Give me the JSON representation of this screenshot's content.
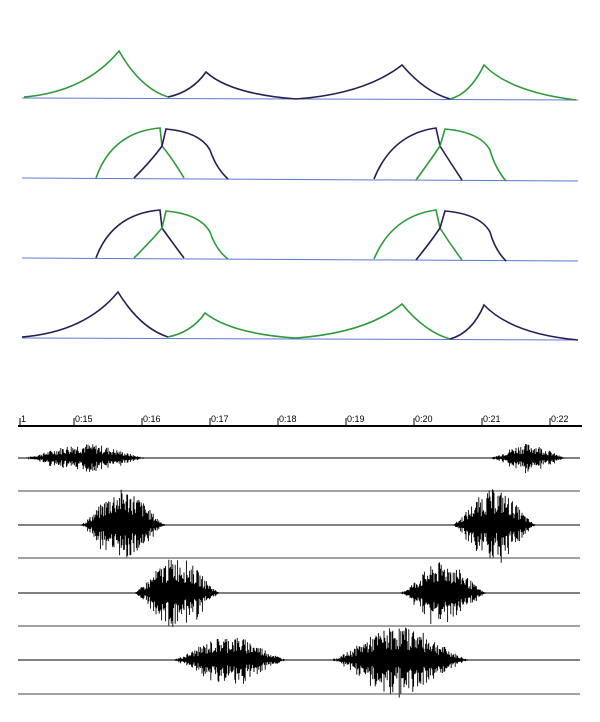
{
  "figure": {
    "timeline": {
      "ticks": [
        "1",
        "0:15",
        "0:16",
        "0:17",
        "0:18",
        "0:19",
        "0:20",
        "0:21",
        "0:22"
      ]
    },
    "colors": {
      "green": "#2e9a3c",
      "purple": "#2b1d52",
      "baseline": "#5b78d6",
      "waveform": "#000000"
    },
    "envelope_rows": [
      {
        "row": 1,
        "shape": "peaked",
        "order": [
          "green",
          "purple",
          "purple",
          "green"
        ]
      },
      {
        "row": 2,
        "shape": "arched",
        "order": [
          "green",
          "purple",
          "purple",
          "green"
        ]
      },
      {
        "row": 3,
        "shape": "arched",
        "order": [
          "purple",
          "green",
          "green",
          "purple"
        ]
      },
      {
        "row": 4,
        "shape": "peaked",
        "order": [
          "purple",
          "green",
          "green",
          "purple"
        ]
      }
    ],
    "waveform_rows": [
      {
        "row": 1,
        "description_bursts": 2
      },
      {
        "row": 2,
        "description_bursts": 2
      },
      {
        "row": 3,
        "description_bursts": 2
      },
      {
        "row": 4,
        "description_bursts": 2
      }
    ]
  }
}
